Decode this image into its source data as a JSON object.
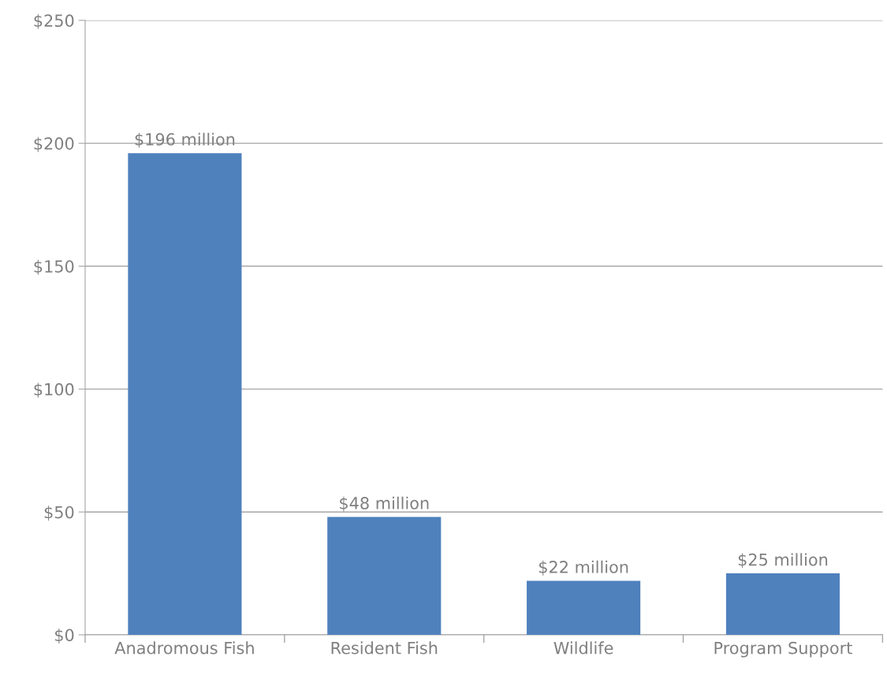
{
  "chart_data": {
    "type": "bar",
    "categories": [
      "Anadromous Fish",
      "Resident Fish",
      "Wildlife",
      "Program Support"
    ],
    "values": [
      196,
      48,
      22,
      25
    ],
    "value_labels": [
      "$196 million",
      "$48 million",
      "$22 million",
      "$25 million"
    ],
    "color": "#4f81bd",
    "ylim": [
      0,
      250
    ],
    "yticks": [
      {
        "value": 0,
        "label": "$0"
      },
      {
        "value": 50,
        "label": "$50"
      },
      {
        "value": 100,
        "label": "$100"
      },
      {
        "value": 150,
        "label": "$150"
      },
      {
        "value": 200,
        "label": "$200"
      },
      {
        "value": 250,
        "label": "$250"
      }
    ],
    "grid": "y",
    "legend": false
  }
}
